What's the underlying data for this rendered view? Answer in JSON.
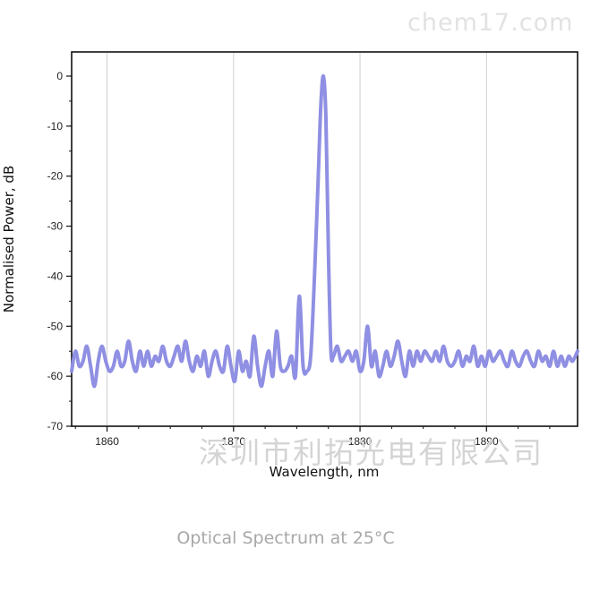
{
  "watermark_top": "chem17.com",
  "watermark_mid": "深圳市利拓光电有限公司",
  "caption": "Optical Spectrum at 25°C",
  "chart_data": {
    "type": "line",
    "xlabel": "Wavelength, nm",
    "ylabel": "Normalised Power, dB",
    "xlim": [
      1857.2,
      1897.2
    ],
    "ylim": [
      -70,
      4
    ],
    "xticks": [
      1860,
      1870,
      1880,
      1890
    ],
    "yticks": [
      0,
      -10,
      -20,
      -30,
      -40,
      -50,
      -60,
      -70
    ],
    "grid": "vertical",
    "line_color": "#8f8fe3",
    "series": [
      {
        "x": [
          1857.2,
          1857.5,
          1857.8,
          1858.1,
          1858.4,
          1858.7,
          1859.0,
          1859.3,
          1859.6,
          1859.9,
          1860.2,
          1860.5,
          1860.8,
          1861.1,
          1861.4,
          1861.7,
          1862.0,
          1862.3,
          1862.6,
          1862.9,
          1863.2,
          1863.5,
          1863.8,
          1864.1,
          1864.4,
          1864.7,
          1865.0,
          1865.3,
          1865.6,
          1865.9,
          1866.2,
          1866.5,
          1866.8,
          1867.1,
          1867.4,
          1867.7,
          1868.0,
          1868.3,
          1868.6,
          1868.9,
          1869.2,
          1869.5,
          1869.8,
          1870.1,
          1870.4,
          1870.7,
          1871.0,
          1871.3,
          1871.6,
          1871.9,
          1872.2,
          1872.5,
          1872.8,
          1873.1,
          1873.4,
          1873.7,
          1874.0,
          1874.3,
          1874.6,
          1874.9,
          1875.2,
          1875.5,
          1875.8,
          1876.1,
          1876.4,
          1876.7,
          1876.9,
          1877.1,
          1877.3,
          1877.5,
          1877.7,
          1877.9,
          1878.2,
          1878.5,
          1878.8,
          1879.1,
          1879.4,
          1879.7,
          1880.0,
          1880.3,
          1880.6,
          1880.9,
          1881.2,
          1881.5,
          1881.8,
          1882.1,
          1882.4,
          1882.7,
          1883.0,
          1883.3,
          1883.6,
          1883.9,
          1884.2,
          1884.5,
          1884.8,
          1885.1,
          1885.4,
          1885.7,
          1886.0,
          1886.3,
          1886.6,
          1886.9,
          1887.2,
          1887.5,
          1887.8,
          1888.1,
          1888.4,
          1888.7,
          1889.0,
          1889.3,
          1889.6,
          1889.9,
          1890.2,
          1890.5,
          1890.8,
          1891.1,
          1891.4,
          1891.7,
          1892.0,
          1892.3,
          1892.6,
          1892.9,
          1893.2,
          1893.5,
          1893.8,
          1894.1,
          1894.4,
          1894.7,
          1895.0,
          1895.3,
          1895.6,
          1895.9,
          1896.2,
          1896.5,
          1896.8,
          1897.2
        ],
        "y": [
          -59,
          -55,
          -58,
          -57,
          -54,
          -58,
          -62,
          -57,
          -54,
          -57,
          -59,
          -58,
          -55,
          -58,
          -57,
          -53,
          -57,
          -59,
          -55,
          -58,
          -55,
          -58,
          -56,
          -57,
          -54,
          -57,
          -58,
          -56,
          -54,
          -57,
          -53,
          -57,
          -59,
          -56,
          -58,
          -55,
          -60,
          -57,
          -55,
          -58,
          -59,
          -54,
          -58,
          -61,
          -55,
          -59,
          -57,
          -60,
          -52,
          -58,
          -62,
          -58,
          -55,
          -60,
          -51,
          -58,
          -59,
          -58,
          -56,
          -60,
          -44,
          -58,
          -59,
          -56,
          -40,
          -20,
          -6,
          0,
          -8,
          -35,
          -55,
          -56,
          -54,
          -57,
          -56,
          -55,
          -57,
          -55,
          -59,
          -57,
          -50,
          -58,
          -55,
          -60,
          -58,
          -55,
          -58,
          -56,
          -53,
          -57,
          -60,
          -55,
          -58,
          -55,
          -57,
          -55,
          -56,
          -57,
          -55,
          -57,
          -54,
          -57,
          -58,
          -57,
          -55,
          -58,
          -56,
          -57,
          -54,
          -58,
          -56,
          -58,
          -55,
          -57,
          -56,
          -55,
          -57,
          -58,
          -55,
          -57,
          -58,
          -56,
          -55,
          -57,
          -58,
          -55,
          -57,
          -56,
          -58,
          -55,
          -58,
          -56,
          -58,
          -56,
          -57,
          -55
        ]
      }
    ]
  }
}
